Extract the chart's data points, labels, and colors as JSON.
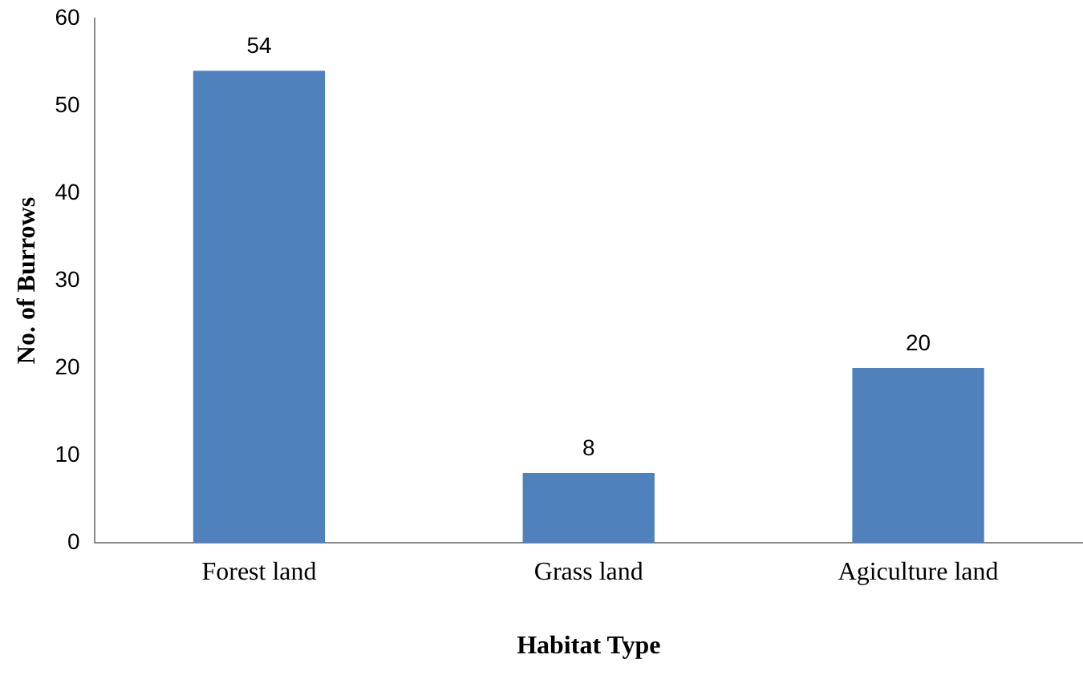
{
  "chart_data": {
    "type": "bar",
    "xlabel": "Habitat Type",
    "ylabel": "No. of Burrows",
    "categories": [
      "Forest land",
      "Grass land",
      "Agiculture land"
    ],
    "values": [
      54,
      8,
      20
    ],
    "color": "#4f81bd",
    "ylim": [
      0,
      60
    ],
    "yticks": [
      0,
      10,
      20,
      30,
      40,
      50,
      60
    ],
    "grid": false,
    "data_labels": true
  }
}
